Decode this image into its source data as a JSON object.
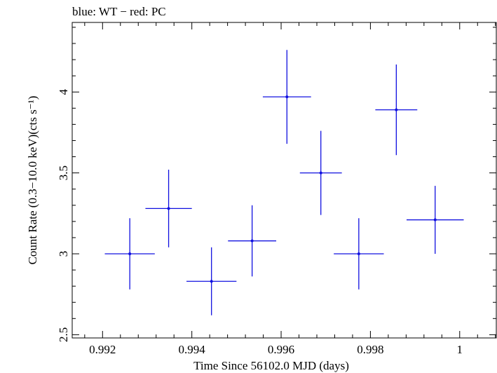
{
  "chart_data": {
    "type": "scatter",
    "title": "blue: WT − red: PC",
    "xlabel": "Time Since 56102.0 MJD (days)",
    "ylabel": "Count Rate (0.3−10.0 keV)(cts s⁻¹)",
    "xlim": [
      0.99132,
      1.00082
    ],
    "ylim": [
      2.48,
      4.43
    ],
    "xticks": [
      0.992,
      0.994,
      0.996,
      0.998,
      1.0
    ],
    "xtick_labels": [
      "0.992",
      "0.994",
      "0.996",
      "0.998",
      "1"
    ],
    "yticks": [
      2.5,
      3.0,
      3.5,
      4.0
    ],
    "ytick_labels": [
      "2.5",
      "3",
      "3.5",
      "4"
    ],
    "series": [
      {
        "color": "#1010e0",
        "points": [
          {
            "x": 0.99261,
            "xerr": 0.00056,
            "y": 3.0,
            "yerr": 0.22
          },
          {
            "x": 0.99348,
            "xerr": 0.00052,
            "y": 3.28,
            "yerr": 0.24
          },
          {
            "x": 0.99444,
            "xerr": 0.00056,
            "y": 2.83,
            "yerr": 0.21
          },
          {
            "x": 0.99535,
            "xerr": 0.00054,
            "y": 3.08,
            "yerr": 0.22
          },
          {
            "x": 0.99613,
            "xerr": 0.00054,
            "y": 3.97,
            "yerr": 0.29
          },
          {
            "x": 0.99689,
            "xerr": 0.00047,
            "y": 3.5,
            "yerr": 0.26
          },
          {
            "x": 0.99774,
            "xerr": 0.00056,
            "y": 3.0,
            "yerr": 0.22
          },
          {
            "x": 0.99858,
            "xerr": 0.00047,
            "y": 3.89,
            "yerr": 0.28
          },
          {
            "x": 0.99945,
            "xerr": 0.00064,
            "y": 3.21,
            "yerr": 0.21
          }
        ]
      }
    ]
  }
}
